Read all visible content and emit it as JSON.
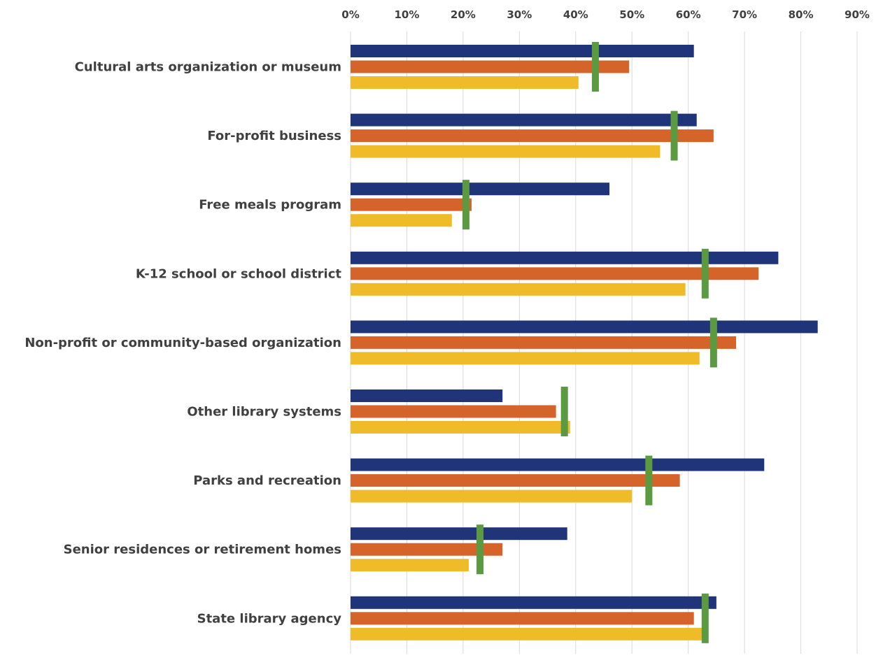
{
  "chart_data": {
    "type": "bar",
    "orientation": "horizontal",
    "title": "",
    "xlabel": "",
    "ylabel": "",
    "xlim": [
      0,
      90
    ],
    "x_tick_labels": [
      "0%",
      "10%",
      "20%",
      "30%",
      "40%",
      "50%",
      "60%",
      "70%",
      "80%",
      "90%"
    ],
    "x_axis_position": "top",
    "grid": true,
    "legend": "none",
    "categories": [
      "Cultural arts organization or museum",
      "For-profit business",
      "Free meals program",
      "K-12 school or school district",
      "Non-profit or community-based organization",
      "Other library systems",
      "Parks and recreation",
      "Senior residences or retirement homes",
      "State library agency"
    ],
    "series": [
      {
        "color": "#203579",
        "values": [
          61,
          61.5,
          46,
          76,
          83,
          27,
          73.5,
          38.5,
          65
        ]
      },
      {
        "color": "#d5642b",
        "values": [
          49.5,
          64.5,
          21.5,
          72.5,
          68.5,
          36.5,
          58.5,
          27,
          61
        ]
      },
      {
        "color": "#f0bb29",
        "values": [
          40.5,
          55,
          18,
          59.5,
          62,
          39,
          50,
          21,
          63
        ]
      }
    ],
    "markers": {
      "color": "#5b9a41",
      "style": "vertical-bar",
      "values": [
        43.5,
        57.5,
        20.5,
        63,
        64.5,
        38,
        53,
        23,
        63
      ]
    }
  }
}
